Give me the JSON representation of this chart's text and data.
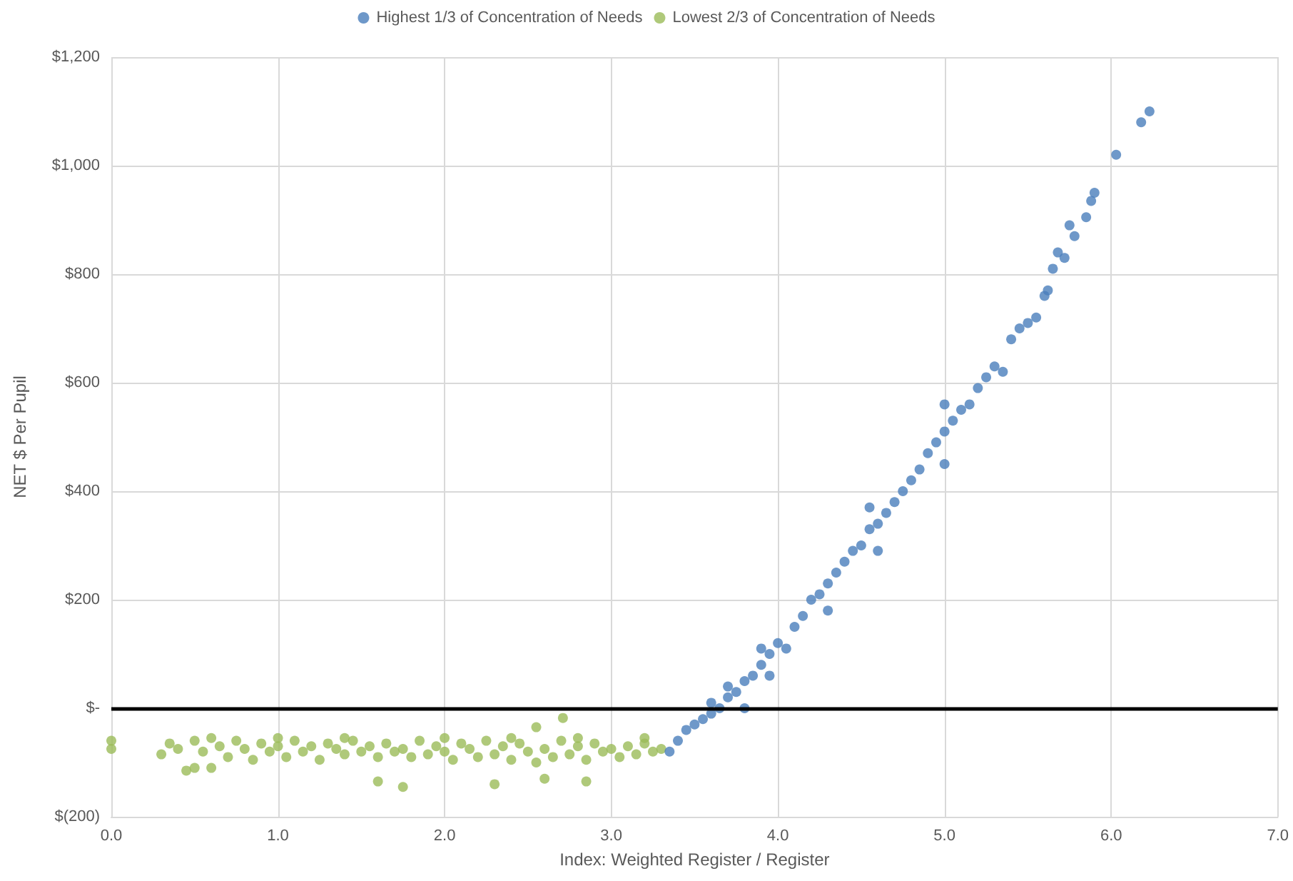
{
  "chart_data": {
    "type": "scatter",
    "xlabel": "Index: Weighted Register / Register",
    "ylabel": "NET $ Per Pupil",
    "xlim": [
      0,
      7
    ],
    "xticks": [
      {
        "value": 0,
        "label": "0.0"
      },
      {
        "value": 1,
        "label": "1.0"
      },
      {
        "value": 2,
        "label": "2.0"
      },
      {
        "value": 3,
        "label": "3.0"
      },
      {
        "value": 4,
        "label": "4.0"
      },
      {
        "value": 5,
        "label": "5.0"
      },
      {
        "value": 6,
        "label": "6.0"
      },
      {
        "value": 7,
        "label": "7.0"
      }
    ],
    "ylim": [
      -200,
      1200
    ],
    "yticks": [
      {
        "value": -200,
        "label": "$(200)"
      },
      {
        "value": 0,
        "label": "$-"
      },
      {
        "value": 200,
        "label": "$200"
      },
      {
        "value": 400,
        "label": "$400"
      },
      {
        "value": 600,
        "label": "$600"
      },
      {
        "value": 800,
        "label": "$800"
      },
      {
        "value": 1000,
        "label": "$1,000"
      },
      {
        "value": 1200,
        "label": "$1,200"
      }
    ],
    "grid": true,
    "legend": "top",
    "marker": "circle",
    "ref_lines": [
      {
        "axis": "y",
        "value": 0,
        "color": "#000000"
      }
    ],
    "series": [
      {
        "name": "Highest 1/3 of Concentration of Needs",
        "color": "#4a7ebb",
        "x": [
          3.35,
          3.4,
          3.45,
          3.5,
          3.55,
          3.6,
          3.6,
          3.65,
          3.7,
          3.7,
          3.75,
          3.8,
          3.85,
          3.9,
          3.95,
          3.95,
          4.0,
          4.05,
          4.1,
          4.15,
          4.2,
          4.25,
          4.3,
          4.35,
          4.4,
          4.45,
          4.5,
          4.55,
          4.55,
          4.6,
          4.65,
          4.7,
          4.75,
          4.8,
          4.85,
          4.9,
          4.95,
          5.0,
          5.0,
          5.05,
          5.1,
          5.15,
          5.2,
          5.25,
          5.3,
          5.35,
          5.4,
          5.45,
          5.5,
          5.55,
          5.6,
          5.62,
          5.65,
          5.68,
          5.72,
          5.75,
          5.78,
          5.85,
          5.88,
          5.9,
          6.03,
          6.18,
          6.23,
          3.8,
          3.9,
          4.3,
          4.6,
          5.0
        ],
        "values": [
          -80,
          -60,
          -40,
          -30,
          -20,
          -10,
          10,
          0,
          20,
          40,
          30,
          50,
          60,
          80,
          100,
          60,
          120,
          110,
          150,
          170,
          200,
          210,
          230,
          250,
          270,
          290,
          300,
          330,
          370,
          340,
          360,
          380,
          400,
          420,
          440,
          470,
          490,
          450,
          510,
          530,
          550,
          560,
          590,
          610,
          630,
          620,
          680,
          700,
          710,
          720,
          760,
          770,
          810,
          840,
          830,
          890,
          870,
          905,
          935,
          950,
          1020,
          1080,
          1100,
          0,
          110,
          180,
          290,
          560
        ]
      },
      {
        "name": "Lowest 2/3 of Concentration of Needs",
        "color": "#9bbb59",
        "x": [
          0,
          0,
          0.3,
          0.35,
          0.4,
          0.45,
          0.5,
          0.5,
          0.55,
          0.6,
          0.65,
          0.7,
          0.75,
          0.8,
          0.85,
          0.9,
          0.95,
          1.0,
          1.05,
          1.1,
          1.15,
          1.2,
          1.25,
          1.3,
          1.35,
          1.4,
          1.45,
          1.5,
          1.55,
          1.6,
          1.6,
          1.65,
          1.7,
          1.75,
          1.75,
          1.8,
          1.85,
          1.9,
          1.95,
          2.0,
          2.05,
          2.1,
          2.15,
          2.2,
          2.25,
          2.3,
          2.3,
          2.35,
          2.4,
          2.45,
          2.5,
          2.55,
          2.55,
          2.6,
          2.6,
          2.65,
          2.7,
          2.71,
          2.75,
          2.8,
          2.85,
          2.85,
          2.9,
          2.95,
          3.0,
          3.05,
          3.1,
          3.15,
          3.2,
          3.25,
          3.3,
          0.6,
          1.0,
          1.4,
          2.0,
          2.4,
          2.8,
          3.2
        ],
        "values": [
          -60,
          -75,
          -85,
          -65,
          -75,
          -115,
          -60,
          -110,
          -80,
          -110,
          -70,
          -90,
          -60,
          -75,
          -95,
          -65,
          -80,
          -70,
          -90,
          -60,
          -80,
          -70,
          -95,
          -65,
          -75,
          -85,
          -60,
          -80,
          -70,
          -90,
          -135,
          -65,
          -80,
          -75,
          -145,
          -90,
          -60,
          -85,
          -70,
          -80,
          -95,
          -65,
          -75,
          -90,
          -60,
          -85,
          -140,
          -70,
          -95,
          -65,
          -80,
          -35,
          -100,
          -75,
          -130,
          -90,
          -60,
          -18,
          -85,
          -70,
          -95,
          -135,
          -65,
          -80,
          -75,
          -90,
          -70,
          -85,
          -65,
          -80,
          -75,
          -55,
          -55,
          -55,
          -55,
          -55,
          -55,
          -55
        ]
      }
    ]
  }
}
